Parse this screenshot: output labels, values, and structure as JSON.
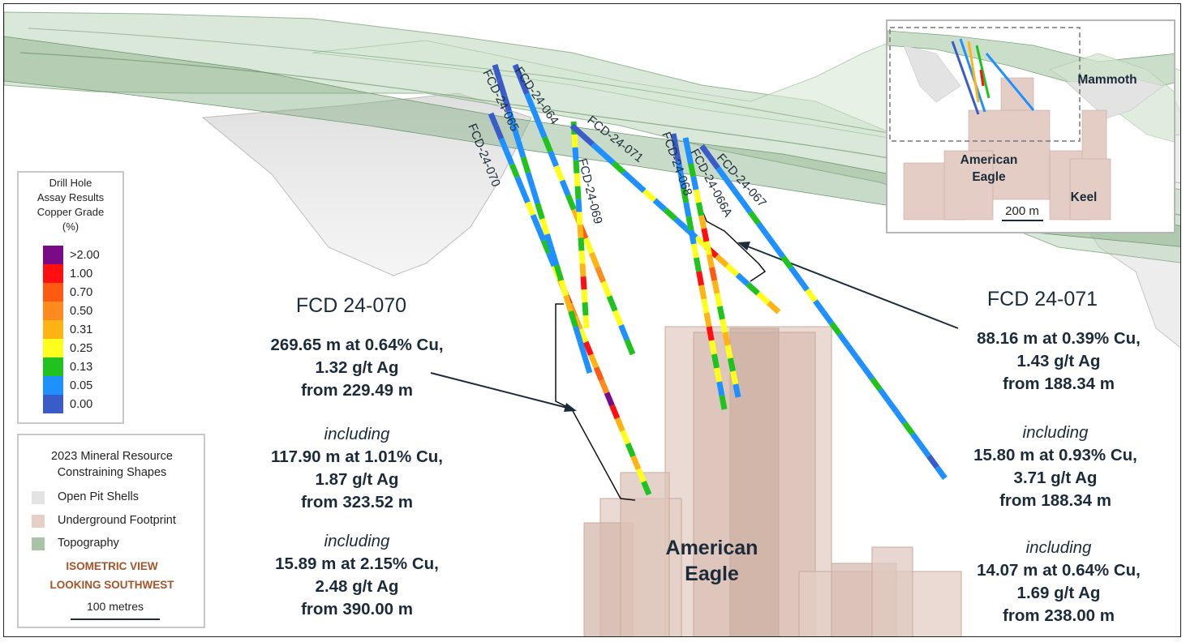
{
  "legend_grade": {
    "title_lines": [
      "Drill Hole",
      "Assay Results",
      "Copper Grade",
      "(%)"
    ],
    "classes": [
      {
        "label": ">2.00",
        "color": "#7b0a86"
      },
      {
        "label": "1.00",
        "color": "#ff0f0f"
      },
      {
        "label": "0.70",
        "color": "#ff5a12"
      },
      {
        "label": "0.50",
        "color": "#ff8a1e"
      },
      {
        "label": "0.31",
        "color": "#ffb414"
      },
      {
        "label": "0.25",
        "color": "#ffff1e"
      },
      {
        "label": "0.13",
        "color": "#1fc21f"
      },
      {
        "label": "0.05",
        "color": "#1e90ff"
      },
      {
        "label": "0.00",
        "color": "#3a5cc8"
      }
    ]
  },
  "legend_resource": {
    "title_lines": [
      "2023 Mineral Resource",
      "Constraining Shapes"
    ],
    "items": [
      {
        "label": "Open Pit Shells",
        "color": "#e3e3e3"
      },
      {
        "label": "Underground Footprint",
        "color": "#e8cfc6"
      },
      {
        "label": "Topography",
        "color": "#a9c3a6"
      }
    ],
    "view_lines": [
      "ISOMETRIC VIEW",
      "LOOKING SOUTHWEST"
    ],
    "scale_label": "100 metres"
  },
  "drill_holes": [
    "FCD-24-070",
    "FCD-24-065",
    "FCD-24-064",
    "FCD-24-069",
    "FCD-24-071",
    "FCD-24-068",
    "FCD-24-066A",
    "FCD-24-067"
  ],
  "callout_070": {
    "title": "FCD 24-070",
    "main": [
      "269.65 m at 0.64% Cu,",
      "1.32 g/t Ag",
      "from 229.49 m"
    ],
    "inc1_label": "including",
    "inc1": [
      "117.90 m at 1.01% Cu,",
      "1.87 g/t Ag",
      "from 323.52 m"
    ],
    "inc2_label": "including",
    "inc2": [
      "15.89 m at 2.15% Cu,",
      "2.48 g/t Ag",
      "from 390.00 m"
    ]
  },
  "callout_071": {
    "title": "FCD 24-071",
    "main": [
      "88.16 m at 0.39% Cu,",
      "1.43 g/t Ag",
      "from 188.34 m"
    ],
    "inc1_label": "including",
    "inc1": [
      "15.80 m at 0.93% Cu,",
      "3.71 g/t Ag",
      "from 188.34 m"
    ],
    "inc2_label": "including",
    "inc2": [
      "14.07 m at 0.64% Cu,",
      "1.69 g/t Ag",
      "from 238.00 m"
    ]
  },
  "deposit_label": [
    "American",
    "Eagle"
  ],
  "inset": {
    "labels": {
      "mammoth": "Mammoth",
      "american_eagle": [
        "American",
        "Eagle"
      ],
      "keel": "Keel"
    },
    "scale_label": "200 m"
  }
}
